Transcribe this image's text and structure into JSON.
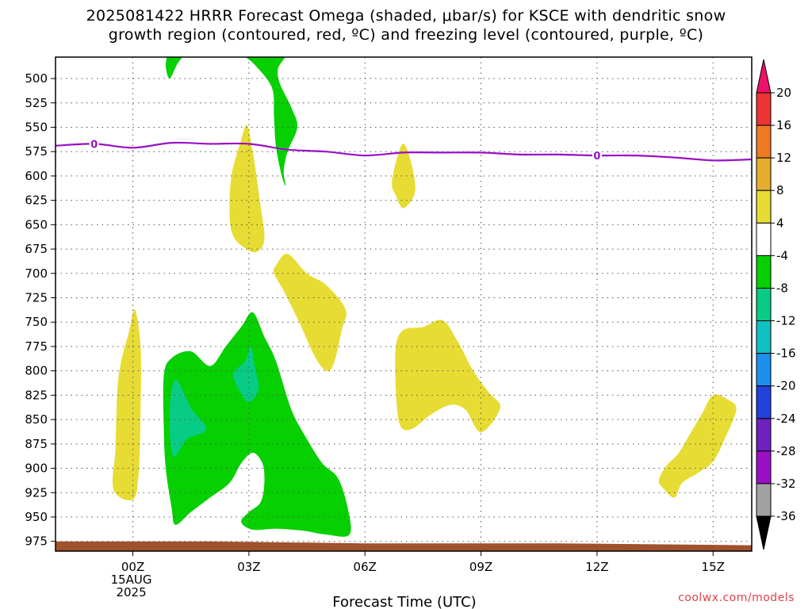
{
  "title": {
    "line1": "2025081422 HRRR Forecast Omega (shaded, μbar/s) for KSCE with dendritic snow",
    "line2": "growth region (contoured, red, ºC) and freezing level (contoured, purple, ºC)"
  },
  "credit": "coolwx.com/models",
  "chart_data": {
    "type": "time-height contour",
    "xlabel": "Forecast Time (UTC)",
    "x_ticks": [
      {
        "hour": 0,
        "label": "00Z",
        "sub": [
          "15AUG",
          "2025"
        ]
      },
      {
        "hour": 3,
        "label": "03Z"
      },
      {
        "hour": 6,
        "label": "06Z"
      },
      {
        "hour": 9,
        "label": "09Z"
      },
      {
        "hour": 12,
        "label": "12Z"
      },
      {
        "hour": 15,
        "label": "15Z"
      }
    ],
    "xlim": [
      -2,
      16
    ],
    "y_levels": [
      500,
      525,
      550,
      575,
      600,
      625,
      650,
      675,
      700,
      725,
      750,
      775,
      800,
      825,
      850,
      875,
      900,
      925,
      950,
      975
    ],
    "ylim": [
      478,
      985
    ],
    "colorbar": {
      "bands": [
        {
          "color": "#ee1169",
          "arrow": true
        },
        {
          "color": "#ee3333"
        },
        {
          "color": "#ee7a22"
        },
        {
          "color": "#e6ae2e"
        },
        {
          "color": "#e7dc33"
        },
        {
          "color": "#ffffff"
        },
        {
          "color": "#06d000"
        },
        {
          "color": "#08cb86"
        },
        {
          "color": "#10c1c1"
        },
        {
          "color": "#1c90ee"
        },
        {
          "color": "#2342dc"
        },
        {
          "color": "#6d21c0"
        },
        {
          "color": "#9a10c6"
        },
        {
          "color": "#a2a2a2"
        },
        {
          "color": "#000000",
          "arrow": true
        }
      ],
      "labels": [
        "20",
        "16",
        "12",
        "8",
        "4",
        "-4",
        "-8",
        "-12",
        "-16",
        "-20",
        "-24",
        "-28",
        "-32",
        "-36"
      ]
    },
    "freezing_level": {
      "color": "#9a10c6",
      "label": "0",
      "label_hours": [
        -1,
        12
      ],
      "points": [
        [
          -2,
          569
        ],
        [
          -1,
          567
        ],
        [
          0,
          571
        ],
        [
          1,
          566
        ],
        [
          2,
          567
        ],
        [
          3,
          567
        ],
        [
          4,
          573
        ],
        [
          5,
          575
        ],
        [
          6,
          579
        ],
        [
          7,
          576
        ],
        [
          8,
          576
        ],
        [
          9,
          576
        ],
        [
          10,
          578
        ],
        [
          11,
          578
        ],
        [
          12,
          579
        ],
        [
          13,
          579
        ],
        [
          14,
          581
        ],
        [
          15,
          584
        ],
        [
          16,
          583
        ]
      ]
    },
    "terrain": {
      "color": "#a0522d",
      "top": [
        [
          -2,
          975
        ],
        [
          2,
          975
        ],
        [
          6,
          977
        ],
        [
          11,
          977
        ],
        [
          16,
          979
        ]
      ]
    },
    "shaded_regions": [
      {
        "name": "omega-pos-4-8",
        "value_range": "4 to 8",
        "color": "#e7dc33",
        "points": [
          [
            2.5,
            640
          ],
          [
            2.55,
            600
          ],
          [
            2.8,
            563
          ],
          [
            2.95,
            548
          ],
          [
            3.1,
            575
          ],
          [
            3.3,
            630
          ],
          [
            3.4,
            665
          ],
          [
            3.2,
            678
          ],
          [
            2.9,
            674
          ],
          [
            2.6,
            662
          ]
        ]
      },
      {
        "name": "omega-pos-4-8",
        "value_range": "4 to 8",
        "color": "#e7dc33",
        "points": [
          [
            6.7,
            605
          ],
          [
            6.95,
            568
          ],
          [
            7.15,
            580
          ],
          [
            7.3,
            615
          ],
          [
            7.0,
            633
          ],
          [
            6.8,
            620
          ]
        ]
      },
      {
        "name": "omega-pos-4-8",
        "value_range": "4 to 8",
        "color": "#e7dc33",
        "points": [
          [
            3.7,
            692
          ],
          [
            4.0,
            680
          ],
          [
            4.5,
            700
          ],
          [
            5.0,
            712
          ],
          [
            5.5,
            737
          ],
          [
            5.4,
            758
          ],
          [
            5.2,
            792
          ],
          [
            5.0,
            800
          ],
          [
            4.7,
            785
          ],
          [
            4.3,
            750
          ],
          [
            3.9,
            718
          ],
          [
            3.65,
            700
          ]
        ]
      },
      {
        "name": "omega-pos-4-8",
        "value_range": "4 to 8",
        "color": "#e7dc33",
        "points": [
          [
            -0.4,
            820
          ],
          [
            -0.3,
            790
          ],
          [
            -0.1,
            760
          ],
          [
            0.05,
            737
          ],
          [
            0.2,
            775
          ],
          [
            0.2,
            840
          ],
          [
            0.15,
            905
          ],
          [
            0.0,
            932
          ],
          [
            -0.5,
            922
          ],
          [
            -0.45,
            880
          ]
        ]
      },
      {
        "name": "omega-pos-4-8",
        "value_range": "4 to 8",
        "color": "#e7dc33",
        "points": [
          [
            6.8,
            775
          ],
          [
            7.0,
            758
          ],
          [
            7.5,
            755
          ],
          [
            8.0,
            748
          ],
          [
            8.4,
            770
          ],
          [
            8.8,
            800
          ],
          [
            9.2,
            822
          ],
          [
            9.5,
            838
          ],
          [
            9.0,
            863
          ],
          [
            8.6,
            840
          ],
          [
            8.2,
            835
          ],
          [
            7.7,
            845
          ],
          [
            7.2,
            860
          ],
          [
            6.9,
            855
          ],
          [
            6.8,
            820
          ]
        ]
      },
      {
        "name": "omega-pos-4-8",
        "value_range": "4 to 8",
        "color": "#e7dc33",
        "points": [
          [
            13.6,
            912
          ],
          [
            13.8,
            897
          ],
          [
            14.1,
            885
          ],
          [
            14.4,
            865
          ],
          [
            14.7,
            845
          ],
          [
            15.0,
            825
          ],
          [
            15.4,
            830
          ],
          [
            15.6,
            840
          ],
          [
            15.3,
            870
          ],
          [
            15.0,
            893
          ],
          [
            14.6,
            905
          ],
          [
            14.2,
            915
          ],
          [
            14.0,
            930
          ],
          [
            13.7,
            920
          ]
        ]
      },
      {
        "name": "omega-neg-4-8",
        "value_range": "-4 to -8",
        "color": "#06d000",
        "points": [
          [
            0.85,
            485
          ],
          [
            1.0,
            470
          ],
          [
            1.4,
            470
          ],
          [
            1.15,
            485
          ],
          [
            0.95,
            500
          ]
        ]
      },
      {
        "name": "omega-neg-4-8",
        "value_range": "-4 to -8",
        "color": "#06d000",
        "points": [
          [
            2.3,
            470
          ],
          [
            3.9,
            470
          ],
          [
            3.75,
            490
          ],
          [
            3.8,
            505
          ],
          [
            4.1,
            530
          ],
          [
            4.25,
            550
          ],
          [
            4.0,
            575
          ],
          [
            3.9,
            595
          ],
          [
            3.95,
            610
          ],
          [
            3.85,
            600
          ],
          [
            3.7,
            570
          ],
          [
            3.65,
            540
          ],
          [
            3.6,
            510
          ],
          [
            3.2,
            488
          ],
          [
            2.9,
            478
          ],
          [
            2.6,
            475
          ]
        ]
      },
      {
        "name": "omega-neg-4-8",
        "value_range": "-4 to -8",
        "color": "#06d000",
        "points": [
          [
            0.8,
            805
          ],
          [
            1.0,
            787
          ],
          [
            1.5,
            780
          ],
          [
            2.0,
            795
          ],
          [
            2.4,
            775
          ],
          [
            2.8,
            755
          ],
          [
            3.1,
            740
          ],
          [
            3.4,
            765
          ],
          [
            3.7,
            790
          ],
          [
            4.1,
            840
          ],
          [
            4.5,
            870
          ],
          [
            4.9,
            895
          ],
          [
            5.3,
            910
          ],
          [
            5.55,
            940
          ],
          [
            5.6,
            968
          ],
          [
            5.0,
            968
          ],
          [
            4.4,
            964
          ],
          [
            3.7,
            962
          ],
          [
            3.1,
            963
          ],
          [
            2.8,
            955
          ],
          [
            3.0,
            945
          ],
          [
            3.3,
            935
          ],
          [
            3.4,
            915
          ],
          [
            3.35,
            895
          ],
          [
            3.1,
            884
          ],
          [
            2.8,
            895
          ],
          [
            2.5,
            915
          ],
          [
            2.0,
            930
          ],
          [
            1.5,
            945
          ],
          [
            1.1,
            958
          ],
          [
            1.0,
            940
          ],
          [
            0.85,
            900
          ],
          [
            0.8,
            860
          ]
        ]
      },
      {
        "name": "omega-neg-8-12",
        "value_range": "-8 to -12",
        "color": "#08cb86",
        "points": [
          [
            1.0,
            820
          ],
          [
            1.15,
            810
          ],
          [
            1.5,
            838
          ],
          [
            1.9,
            860
          ],
          [
            1.4,
            870
          ],
          [
            1.05,
            888
          ],
          [
            0.95,
            855
          ]
        ]
      },
      {
        "name": "omega-neg-8-12",
        "value_range": "-8 to -12",
        "color": "#08cb86",
        "points": [
          [
            2.6,
            803
          ],
          [
            2.9,
            790
          ],
          [
            3.05,
            775
          ],
          [
            3.15,
            795
          ],
          [
            3.25,
            818
          ],
          [
            3.0,
            832
          ],
          [
            2.75,
            820
          ]
        ]
      }
    ]
  }
}
